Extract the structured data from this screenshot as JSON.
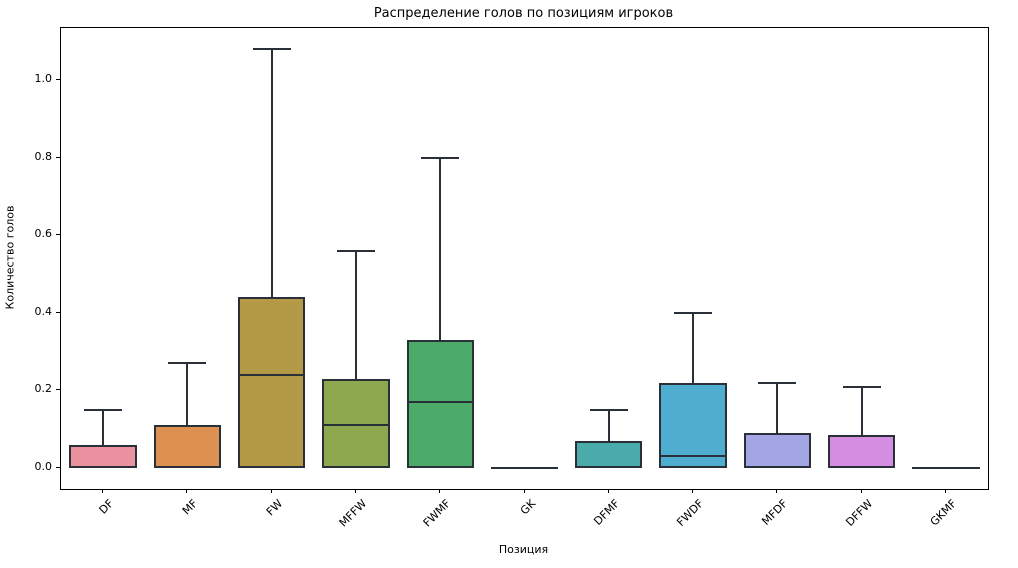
{
  "chart_data": {
    "type": "box",
    "title": "Распределение голов по позициям игроков",
    "xlabel": "Позиция",
    "ylabel": "Количество голов",
    "categories": [
      "DF",
      "MF",
      "FW",
      "MFFW",
      "FWMF",
      "GK",
      "DFMF",
      "FWDF",
      "MFDF",
      "DFFW",
      "GKMF"
    ],
    "y_ticks": [
      0.0,
      0.2,
      0.4,
      0.6,
      0.8,
      1.0
    ],
    "y_tick_labels": [
      "0.0",
      "0.2",
      "0.4",
      "0.6",
      "0.8",
      "1.0"
    ],
    "ylim": [
      -0.054,
      1.134
    ],
    "grid": false,
    "legend": null,
    "boxes": [
      {
        "label": "DF",
        "q1": 0.0,
        "median": 0.0,
        "q3": 0.06,
        "whisker_low": 0.0,
        "whisker_high": 0.15,
        "flat": false,
        "color": "#ea92a0"
      },
      {
        "label": "MF",
        "q1": 0.0,
        "median": 0.0,
        "q3": 0.11,
        "whisker_low": 0.0,
        "whisker_high": 0.27,
        "flat": false,
        "color": "#dc9150"
      },
      {
        "label": "FW",
        "q1": 0.0,
        "median": 0.24,
        "q3": 0.44,
        "whisker_low": 0.0,
        "whisker_high": 1.08,
        "flat": false,
        "color": "#b49a47"
      },
      {
        "label": "MFFW",
        "q1": 0.0,
        "median": 0.11,
        "q3": 0.23,
        "whisker_low": 0.0,
        "whisker_high": 0.56,
        "flat": false,
        "color": "#8da84e"
      },
      {
        "label": "FWMF",
        "q1": 0.0,
        "median": 0.17,
        "q3": 0.33,
        "whisker_low": 0.0,
        "whisker_high": 0.8,
        "flat": false,
        "color": "#4cab69"
      },
      {
        "label": "GK",
        "q1": 0.0,
        "median": 0.0,
        "q3": 0.0,
        "whisker_low": 0.0,
        "whisker_high": 0.0,
        "flat": true,
        "color": null
      },
      {
        "label": "DFMF",
        "q1": 0.0,
        "median": 0.0,
        "q3": 0.07,
        "whisker_low": 0.0,
        "whisker_high": 0.15,
        "flat": false,
        "color": "#4babaa"
      },
      {
        "label": "FWDF",
        "q1": 0.0,
        "median": 0.03,
        "q3": 0.22,
        "whisker_low": 0.0,
        "whisker_high": 0.4,
        "flat": false,
        "color": "#4fadd0"
      },
      {
        "label": "MFDF",
        "q1": 0.0,
        "median": 0.0,
        "q3": 0.09,
        "whisker_low": 0.0,
        "whisker_high": 0.22,
        "flat": false,
        "color": "#a3a5e4"
      },
      {
        "label": "DFFW",
        "q1": 0.0,
        "median": 0.0,
        "q3": 0.085,
        "whisker_low": 0.0,
        "whisker_high": 0.21,
        "flat": false,
        "color": "#d58de2"
      },
      {
        "label": "GKMF",
        "q1": 0.0,
        "median": 0.0,
        "q3": 0.0,
        "whisker_low": 0.0,
        "whisker_high": 0.0,
        "flat": true,
        "color": null
      }
    ],
    "styles": {
      "box_edge_color": "#2a3038",
      "axis_color": "#000000",
      "background": "#ffffff"
    }
  }
}
